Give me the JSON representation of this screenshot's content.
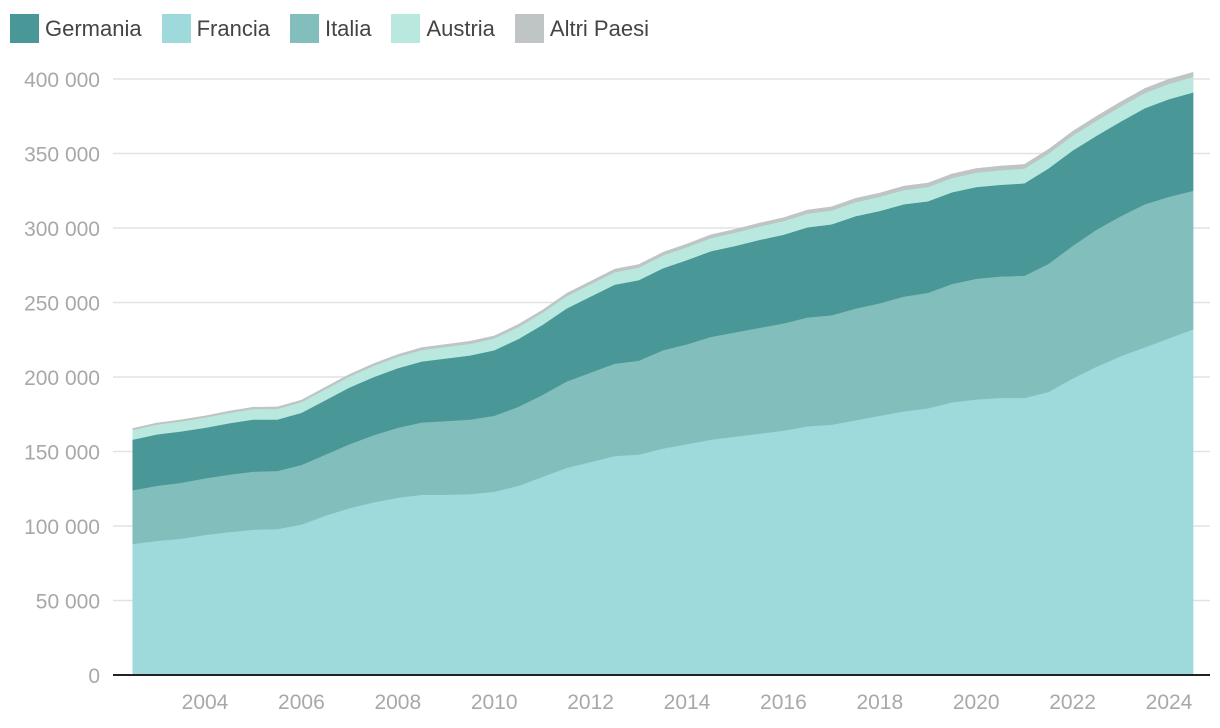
{
  "chart_data": {
    "type": "area",
    "stacked": true,
    "legend_position": "top-left",
    "grid": true,
    "ylim": [
      0,
      400000
    ],
    "xlim": [
      2002.5,
      2024.5
    ],
    "y_ticks": [
      0,
      50000,
      100000,
      150000,
      200000,
      250000,
      300000,
      350000,
      400000
    ],
    "y_tick_labels": [
      "0",
      "50 000",
      "100 000",
      "150 000",
      "200 000",
      "250 000",
      "300 000",
      "350 000",
      "400 000"
    ],
    "x_ticks": [
      2004,
      2006,
      2008,
      2010,
      2012,
      2014,
      2016,
      2018,
      2020,
      2022,
      2024
    ],
    "x_tick_labels": [
      "2004",
      "2006",
      "2008",
      "2010",
      "2012",
      "2014",
      "2016",
      "2018",
      "2020",
      "2022",
      "2024"
    ],
    "x": [
      2002.5,
      2003.0,
      2003.5,
      2004.0,
      2004.5,
      2005.0,
      2005.5,
      2006.0,
      2006.5,
      2007.0,
      2007.5,
      2008.0,
      2008.5,
      2009.0,
      2009.5,
      2010.0,
      2010.5,
      2011.0,
      2011.5,
      2012.0,
      2012.5,
      2013.0,
      2013.5,
      2014.0,
      2014.5,
      2015.0,
      2015.5,
      2016.0,
      2016.5,
      2017.0,
      2017.5,
      2018.0,
      2018.5,
      2019.0,
      2019.5,
      2020.0,
      2020.5,
      2021.0,
      2021.5,
      2022.0,
      2022.5,
      2023.0,
      2023.5,
      2024.0,
      2024.5
    ],
    "series": [
      {
        "name": "Francia",
        "color": "#9edadb",
        "values": [
          88000,
          90000,
          91500,
          94000,
          96000,
          97500,
          98000,
          101000,
          107000,
          112000,
          116000,
          119000,
          121000,
          121000,
          121500,
          123000,
          127000,
          133000,
          139000,
          143000,
          147000,
          148000,
          152000,
          155000,
          158000,
          160000,
          162000,
          164000,
          167000,
          168000,
          171000,
          174000,
          177000,
          179000,
          183000,
          185000,
          186000,
          186000,
          190000,
          199000,
          207000,
          214000,
          220000,
          226000,
          232000
        ]
      },
      {
        "name": "Italia",
        "color": "#82bfbc",
        "values": [
          36000,
          37000,
          37500,
          38000,
          38500,
          39000,
          39000,
          40000,
          41000,
          43000,
          45000,
          47000,
          48500,
          49500,
          50000,
          51000,
          53000,
          55000,
          58000,
          60000,
          62000,
          63000,
          66000,
          67000,
          69000,
          70000,
          71000,
          72000,
          73000,
          73500,
          75000,
          75500,
          77000,
          77500,
          79500,
          81000,
          81500,
          82000,
          86000,
          89000,
          92000,
          94000,
          96000,
          95000,
          93000
        ]
      },
      {
        "name": "Germania",
        "color": "#4a9797",
        "values": [
          34000,
          34500,
          34500,
          34000,
          34500,
          35000,
          34500,
          35000,
          36500,
          38000,
          39000,
          40000,
          41000,
          42000,
          43000,
          44000,
          45500,
          47000,
          49000,
          51000,
          53000,
          54000,
          55000,
          56500,
          57500,
          58000,
          59000,
          59500,
          60500,
          61000,
          62000,
          62000,
          62000,
          61500,
          61500,
          61500,
          61500,
          62000,
          64000,
          64000,
          63000,
          63500,
          64500,
          65500,
          66000
        ]
      },
      {
        "name": "Austria",
        "color": "#b9e8df",
        "values": [
          6500,
          6600,
          6700,
          6800,
          6900,
          7000,
          7100,
          7200,
          7300,
          7400,
          7500,
          7600,
          7700,
          7800,
          7800,
          7900,
          8000,
          8100,
          8200,
          8300,
          8400,
          8500,
          8600,
          8700,
          8800,
          8900,
          9000,
          9100,
          9200,
          9300,
          9400,
          9500,
          9500,
          9600,
          9600,
          9700,
          9800,
          9900,
          9900,
          10000,
          10100,
          10200,
          10200,
          10300,
          10400
        ]
      },
      {
        "name": "Altri Paesi",
        "color": "#bfc4c4",
        "values": [
          1000,
          1000,
          1100,
          1100,
          1200,
          1200,
          1300,
          1300,
          1400,
          1400,
          1500,
          1500,
          1600,
          1600,
          1700,
          1700,
          1800,
          1800,
          1900,
          1900,
          2000,
          2000,
          2100,
          2100,
          2200,
          2200,
          2300,
          2300,
          2400,
          2400,
          2500,
          2500,
          2600,
          2600,
          2700,
          2700,
          2800,
          2800,
          2900,
          2900,
          3000,
          3000,
          3000,
          3100,
          3100
        ]
      }
    ],
    "legend_order": [
      "Germania",
      "Francia",
      "Italia",
      "Austria",
      "Altri Paesi"
    ],
    "stack_order": [
      "Francia",
      "Italia",
      "Germania",
      "Austria",
      "Altri Paesi"
    ]
  }
}
